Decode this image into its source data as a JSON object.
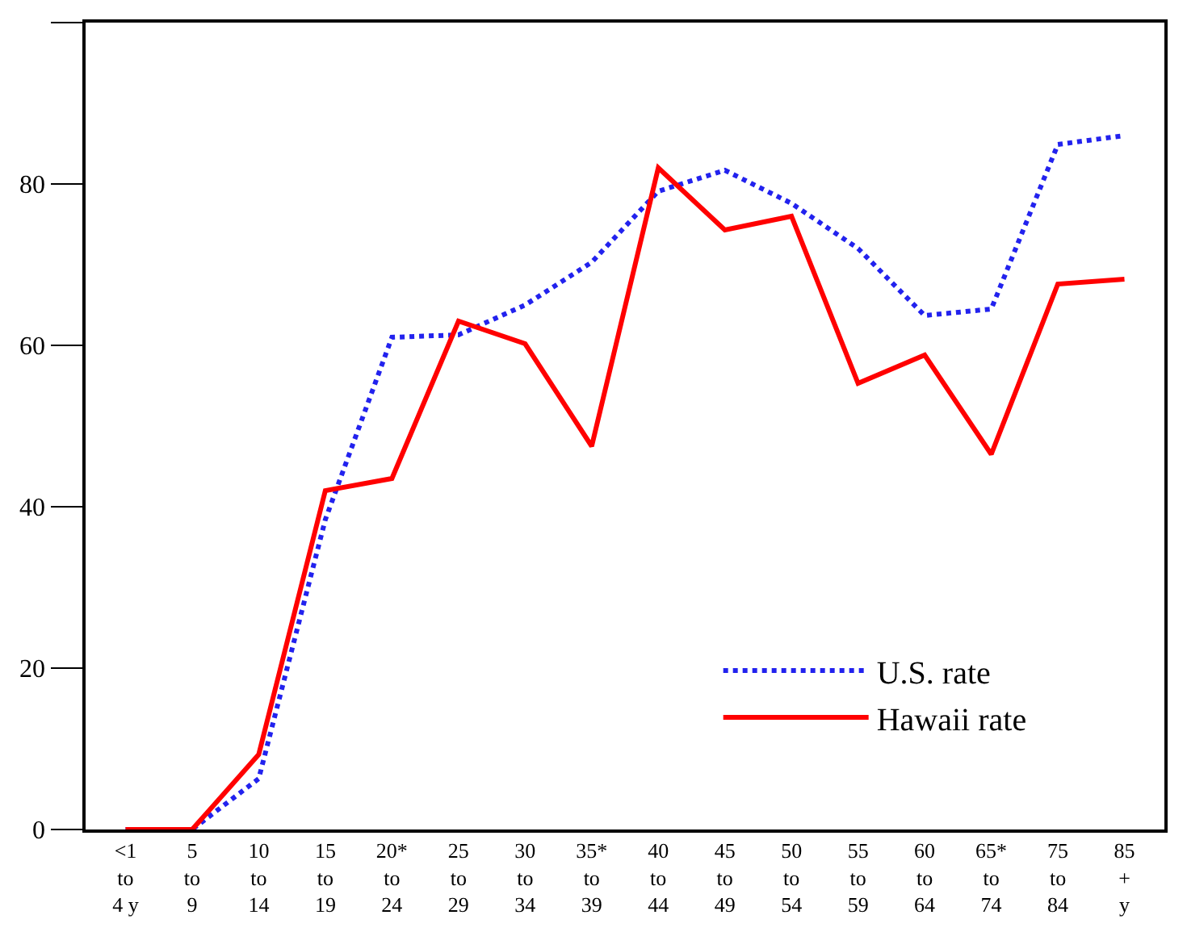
{
  "chart_data": {
    "type": "line",
    "categories": [
      "<1\nto\n4 y",
      "5\nto\n9",
      "10\nto\n14",
      "15\nto\n19",
      "20*\nto\n24",
      "25\nto\n29",
      "30\nto\n34",
      "35*\nto\n39",
      "40\nto\n44",
      "45\nto\n49",
      "50\nto\n54",
      "55\nto\n59",
      "60\nto\n64",
      "65*\nto\n74",
      "75\nto\n84",
      "85\n+\ny"
    ],
    "series": [
      {
        "name": "U.S. rate",
        "color": "#2222ee",
        "line_style": "dotted",
        "values": [
          0,
          0,
          6.3,
          38.4,
          61,
          61.3,
          65,
          70.3,
          79.1,
          81.7,
          77.6,
          72,
          63.7,
          64.5,
          84.9,
          86
        ]
      },
      {
        "name": "Hawaii rate",
        "color": "#ff0000",
        "line_style": "solid",
        "values": [
          0,
          0,
          9.3,
          42,
          43.5,
          63,
          60.2,
          47.5,
          82,
          74.3,
          76,
          55.3,
          58.8,
          46.5,
          67.6,
          68.2
        ]
      }
    ],
    "ylim": [
      0,
      100
    ],
    "yticks": [
      0,
      20,
      40,
      60,
      80,
      {
        "value": 100,
        "label": null
      }
    ],
    "legend": "bottom right",
    "marker": "none"
  }
}
